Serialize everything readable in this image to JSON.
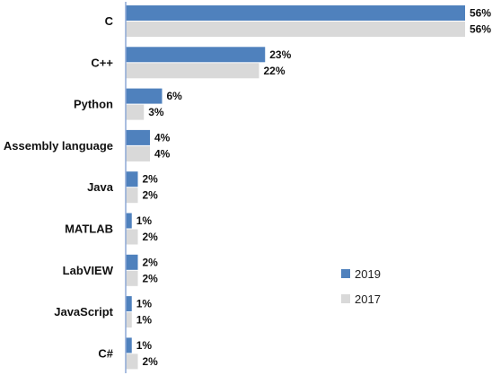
{
  "chart_data": {
    "type": "bar",
    "orientation": "horizontal",
    "categories": [
      "C",
      "C++",
      "Python",
      "Assembly language",
      "Java",
      "MATLAB",
      "LabVIEW",
      "JavaScript",
      "C#"
    ],
    "series": [
      {
        "name": "2019",
        "values": [
          56,
          23,
          6,
          4,
          2,
          1,
          2,
          1,
          1
        ],
        "labels": [
          "56%",
          "23%",
          "6%",
          "4%",
          "2%",
          "1%",
          "2%",
          "1%",
          "1%"
        ],
        "color": "#4f81bd"
      },
      {
        "name": "2017",
        "values": [
          56,
          22,
          3,
          4,
          2,
          2,
          2,
          1,
          2
        ],
        "labels": [
          "56%",
          "22%",
          "3%",
          "4%",
          "2%",
          "2%",
          "2%",
          "1%",
          "2%"
        ],
        "color": "#d9d9d9"
      }
    ],
    "xlim": [
      0,
      56
    ],
    "grid": false,
    "legend_position": "right"
  }
}
